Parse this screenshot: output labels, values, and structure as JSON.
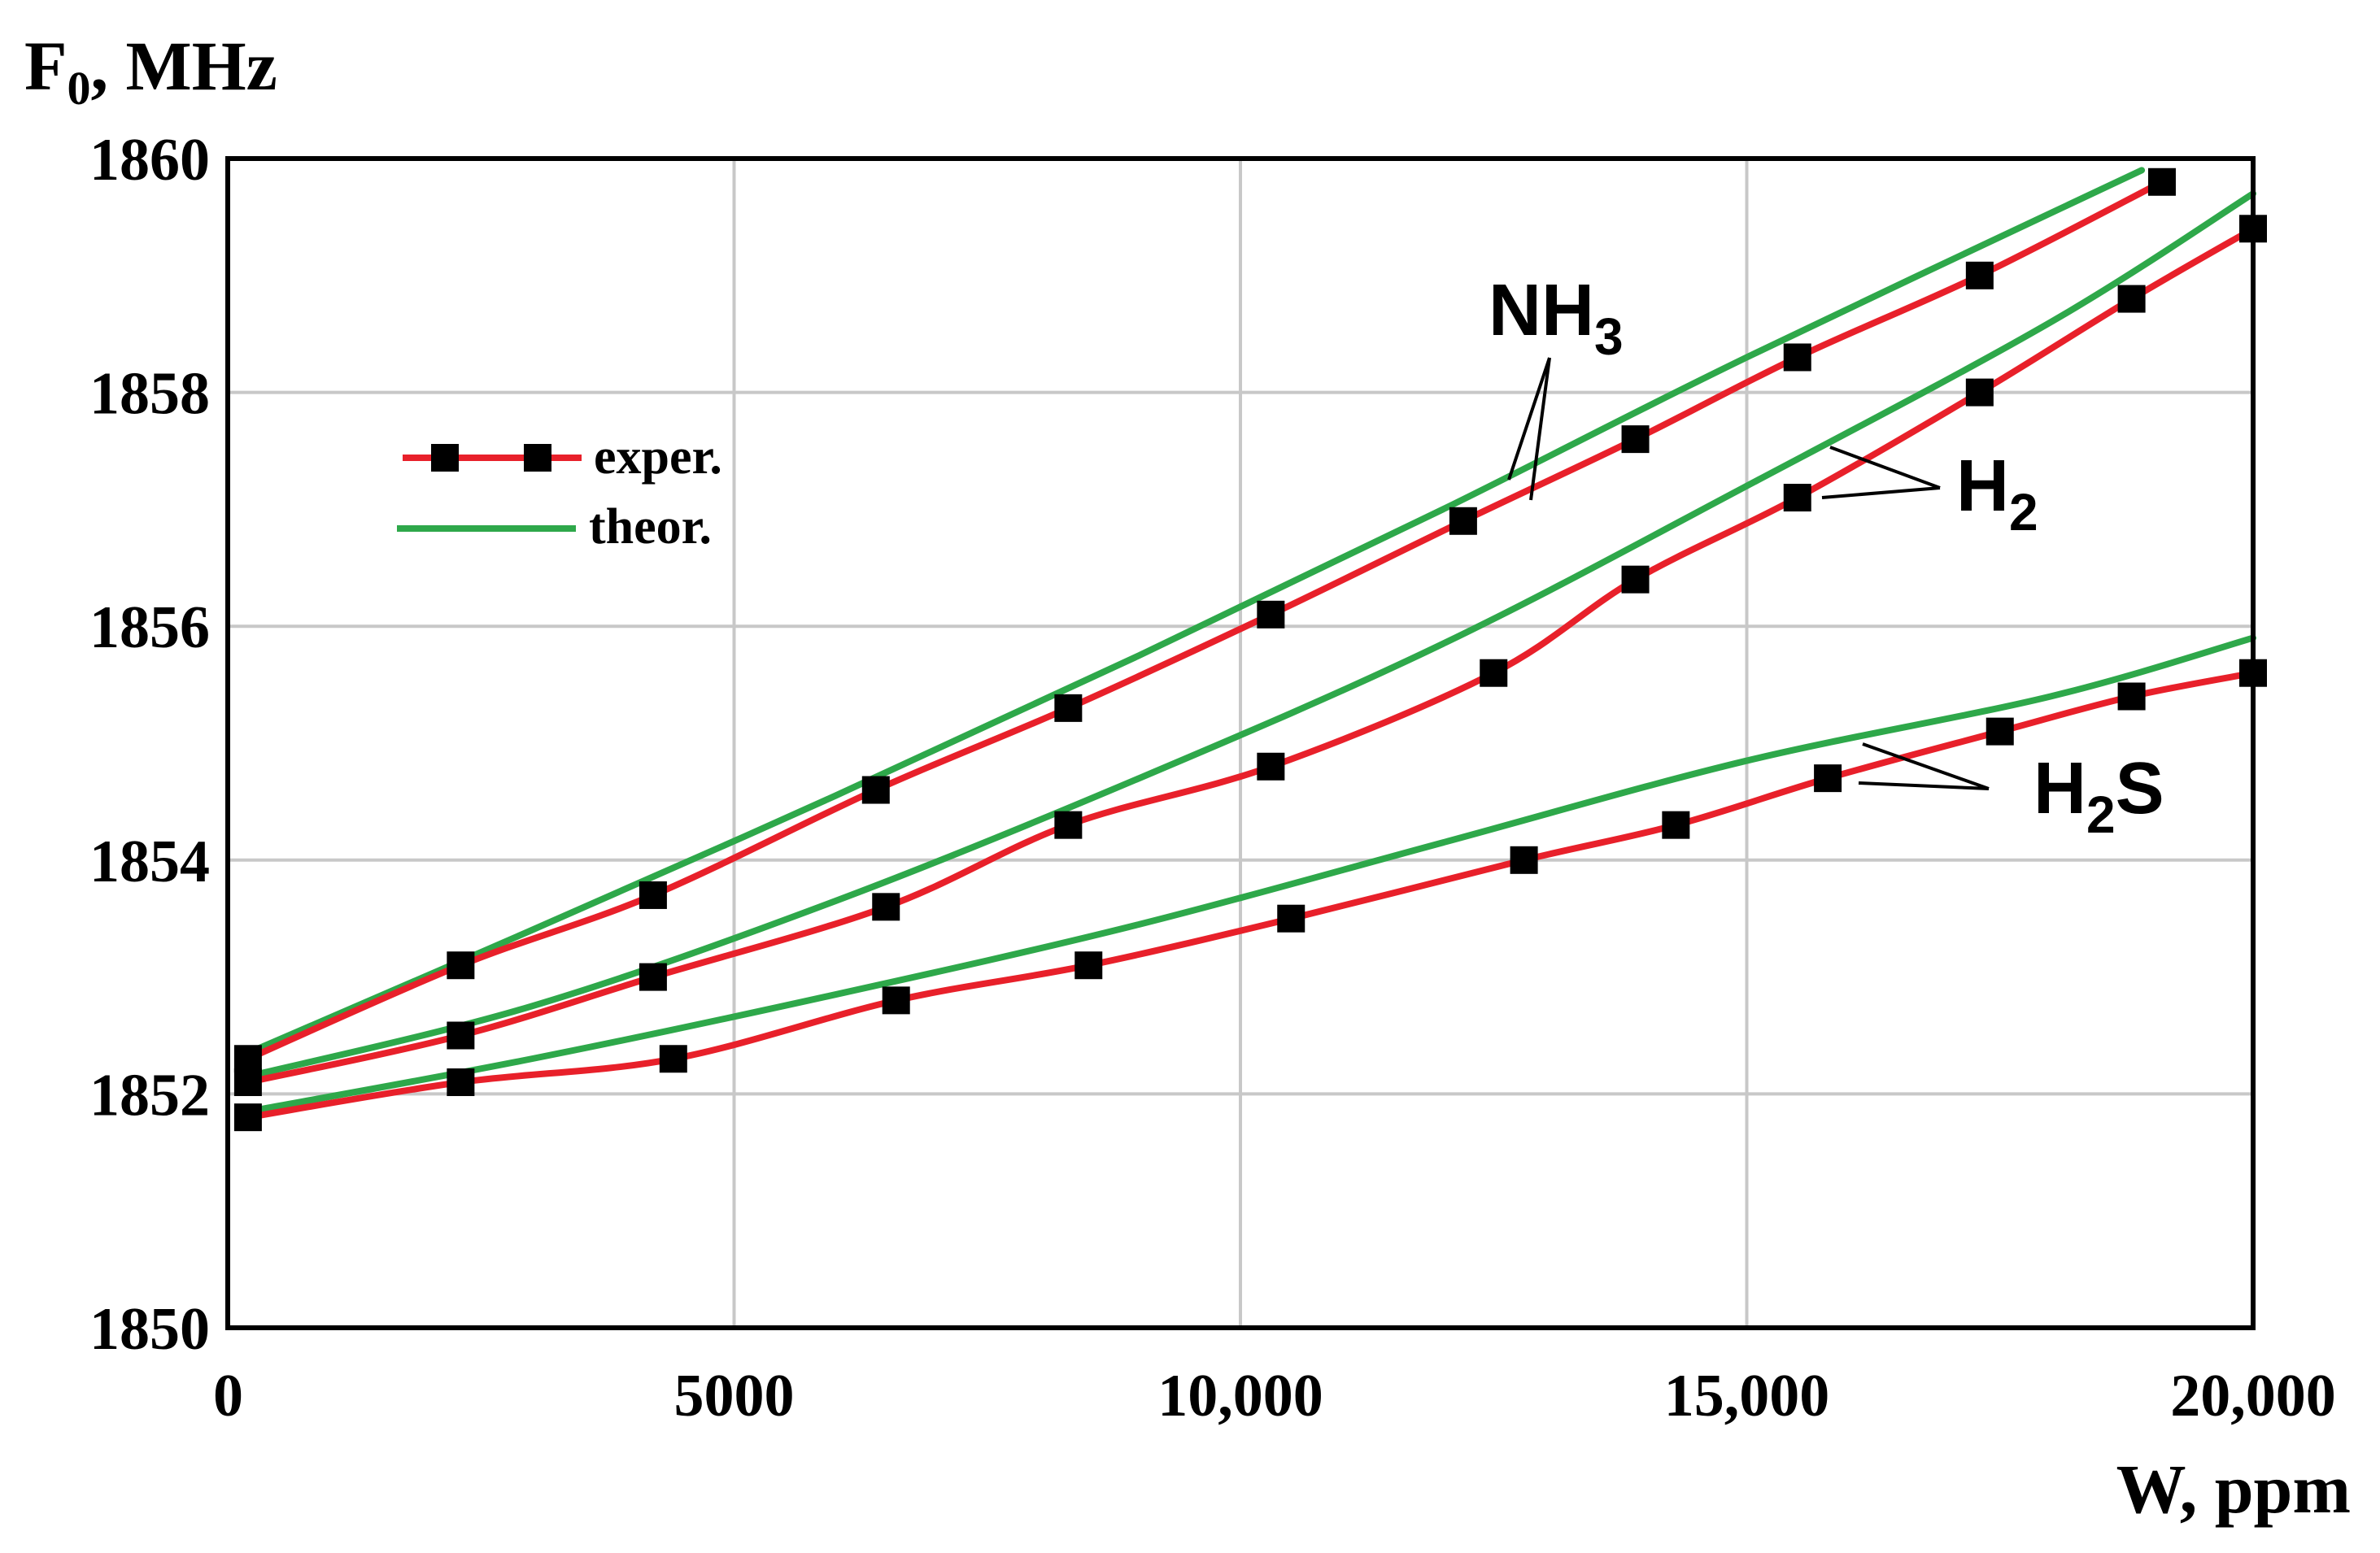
{
  "chart_data": {
    "type": "line",
    "ylabel_main": "F",
    "ylabel_sub": "0",
    "ylabel_rest": ", MHz",
    "xlabel": "W, ppm",
    "xlim": [
      0,
      20000
    ],
    "ylim": [
      1850,
      1860
    ],
    "x_ticks": [
      {
        "value": 0,
        "label": "0"
      },
      {
        "value": 5000,
        "label": "5000"
      },
      {
        "value": 10000,
        "label": "10,000"
      },
      {
        "value": 15000,
        "label": "15,000"
      },
      {
        "value": 20000,
        "label": "20,000"
      }
    ],
    "y_ticks": [
      {
        "value": 1850,
        "label": "1850"
      },
      {
        "value": 1852,
        "label": "1852"
      },
      {
        "value": 1854,
        "label": "1854"
      },
      {
        "value": 1856,
        "label": "1856"
      },
      {
        "value": 1858,
        "label": "1858"
      },
      {
        "value": 1860,
        "label": "1860"
      }
    ],
    "grid": true,
    "legend_position": "top-left",
    "legend": [
      {
        "label": "exper.",
        "style": "line-with-square-markers",
        "color": "#e8202a"
      },
      {
        "label": "theor.",
        "style": "line",
        "color": "#2ea84a"
      }
    ],
    "colors": {
      "exper": "#e8202a",
      "theor": "#2ea84a",
      "marker": "#000000",
      "grid": "#c8c8c8"
    },
    "gases": [
      {
        "id": "nh3",
        "label_main": "NH",
        "label_sub": "3",
        "label_tail": "",
        "experimental": [
          [
            200,
            1852.3
          ],
          [
            2300,
            1853.1
          ],
          [
            4200,
            1853.7
          ],
          [
            6400,
            1854.6
          ],
          [
            8300,
            1855.3
          ],
          [
            10300,
            1856.1
          ],
          [
            12200,
            1856.9
          ],
          [
            13900,
            1857.6
          ],
          [
            15500,
            1858.3
          ],
          [
            17300,
            1859.0
          ],
          [
            19100,
            1859.8
          ]
        ],
        "theoretical": [
          [
            200,
            1852.35
          ],
          [
            3000,
            1853.4
          ],
          [
            6000,
            1854.55
          ],
          [
            9000,
            1855.75
          ],
          [
            12000,
            1857.0
          ],
          [
            15000,
            1858.3
          ],
          [
            18900,
            1859.9
          ]
        ]
      },
      {
        "id": "h2",
        "label_main": "H",
        "label_sub": "2",
        "label_tail": "",
        "experimental": [
          [
            200,
            1852.1
          ],
          [
            2300,
            1852.5
          ],
          [
            4200,
            1853.0
          ],
          [
            6500,
            1853.6
          ],
          [
            8300,
            1854.3
          ],
          [
            10300,
            1854.8
          ],
          [
            12500,
            1855.6
          ],
          [
            13900,
            1856.4
          ],
          [
            15500,
            1857.1
          ],
          [
            17300,
            1858.0
          ],
          [
            18800,
            1858.8
          ],
          [
            20000,
            1859.4
          ]
        ],
        "theoretical": [
          [
            200,
            1852.15
          ],
          [
            3000,
            1852.75
          ],
          [
            6000,
            1853.65
          ],
          [
            9000,
            1854.7
          ],
          [
            12000,
            1855.85
          ],
          [
            15000,
            1857.2
          ],
          [
            18000,
            1858.6
          ],
          [
            20000,
            1859.7
          ]
        ]
      },
      {
        "id": "h2s",
        "label_main": "H",
        "label_sub": "2",
        "label_tail": "S",
        "experimental": [
          [
            200,
            1851.8
          ],
          [
            2300,
            1852.1
          ],
          [
            4400,
            1852.3
          ],
          [
            6600,
            1852.8
          ],
          [
            8500,
            1853.1
          ],
          [
            10500,
            1853.5
          ],
          [
            12800,
            1854.0
          ],
          [
            14300,
            1854.3
          ],
          [
            15800,
            1854.7
          ],
          [
            17500,
            1855.1
          ],
          [
            18800,
            1855.4
          ],
          [
            20000,
            1855.6
          ]
        ],
        "theoretical": [
          [
            200,
            1851.85
          ],
          [
            3000,
            1852.3
          ],
          [
            6000,
            1852.85
          ],
          [
            9000,
            1853.45
          ],
          [
            12000,
            1854.15
          ],
          [
            15000,
            1854.85
          ],
          [
            18000,
            1855.4
          ],
          [
            20000,
            1855.9
          ]
        ]
      }
    ]
  }
}
